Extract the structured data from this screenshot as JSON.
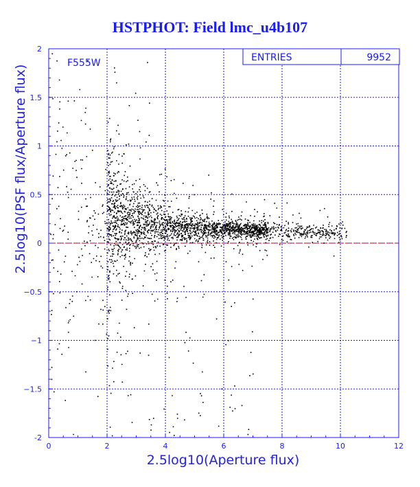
{
  "chart_data": {
    "type": "scatter",
    "title": "HSTPHOT: Field lmc_u4b107",
    "xlabel": "2.5log10(Aperture flux)",
    "ylabel": "2.5log10(PSF flux/Aperture flux)",
    "xlim": [
      0,
      12
    ],
    "ylim": [
      -2,
      2
    ],
    "xticks": [
      0,
      2,
      4,
      6,
      8,
      10,
      12
    ],
    "yticks": [
      -2,
      -1.5,
      -1,
      -0.5,
      0,
      0.5,
      1,
      1.5,
      2
    ],
    "xtick_labels": [
      "0",
      "2",
      "4",
      "6",
      "8",
      "10",
      "12"
    ],
    "ytick_labels": [
      "-2",
      "−1.5",
      "−1",
      "−0.5",
      "0",
      "0.5",
      "1",
      "1.5",
      "2"
    ],
    "grid": true,
    "reference_line": {
      "y": 0,
      "color": "#cc0000"
    },
    "annotation": "F555W",
    "stats": {
      "label": "ENTRIES",
      "value": "9952"
    },
    "entries": 9952,
    "point_color": "#000000",
    "axis_color": "#1a1aff",
    "grid_color": "#1a1aff",
    "density_model": {
      "description_points": [
        {
          "x": 2.0,
          "median": 0.3,
          "spread": 0.35
        },
        {
          "x": 3.0,
          "median": 0.2,
          "spread": 0.18
        },
        {
          "x": 4.0,
          "median": 0.17,
          "spread": 0.1
        },
        {
          "x": 5.0,
          "median": 0.16,
          "spread": 0.07
        },
        {
          "x": 6.0,
          "median": 0.15,
          "spread": 0.05
        },
        {
          "x": 7.0,
          "median": 0.14,
          "spread": 0.04
        },
        {
          "x": 8.0,
          "median": 0.13,
          "spread": 0.04
        },
        {
          "x": 9.0,
          "median": 0.12,
          "spread": 0.04
        },
        {
          "x": 10.0,
          "median": 0.12,
          "spread": 0.04
        }
      ],
      "x_range": [
        0.05,
        10.2
      ]
    }
  }
}
